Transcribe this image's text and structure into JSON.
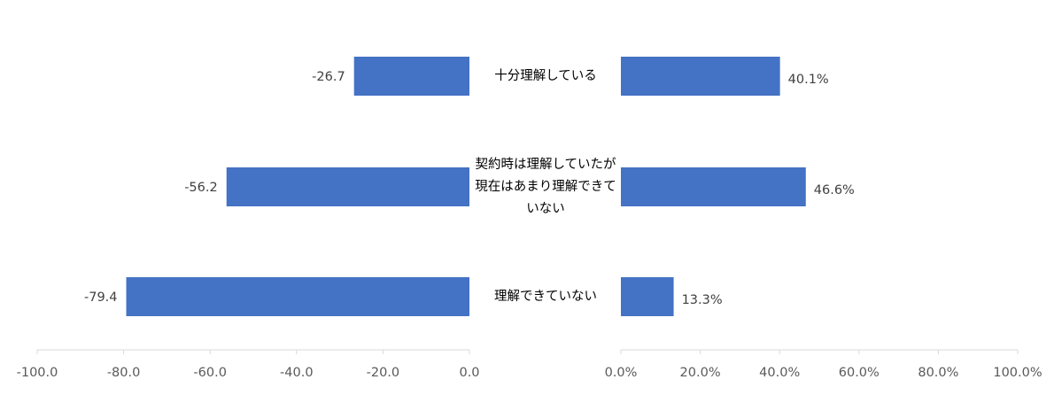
{
  "chart_data": [
    {
      "type": "bar",
      "orientation": "horizontal",
      "direction": "reversed",
      "categories": [
        "十分理解している",
        "契約時は理解していたが現在はあまり理解できていない",
        "理解できていない"
      ],
      "values": [
        -26.7,
        -56.2,
        -79.4
      ],
      "data_labels": [
        "-26.7",
        "-56.2",
        "-79.4"
      ],
      "xlim": [
        -100,
        0
      ],
      "ticks": [
        -100,
        -80,
        -60,
        -40,
        -20,
        0
      ],
      "tick_labels": [
        "-100.0",
        "-80.0",
        "-60.0",
        "-40.0",
        "-20.0",
        "0.0"
      ],
      "grid": false,
      "color": "#4472C4"
    },
    {
      "type": "bar",
      "orientation": "horizontal",
      "categories": [
        "十分理解している",
        "契約時は理解していたが現在はあまり理解できていない",
        "理解できていない"
      ],
      "values": [
        40.1,
        46.6,
        13.3
      ],
      "data_labels": [
        "40.1%",
        "46.6%",
        "13.3%"
      ],
      "xlim": [
        0,
        100
      ],
      "ticks": [
        0,
        20,
        40,
        60,
        80,
        100
      ],
      "tick_labels": [
        "0.0%",
        "20.0%",
        "40.0%",
        "60.0%",
        "80.0%",
        "100.0%"
      ],
      "grid": false,
      "color": "#4472C4"
    }
  ],
  "category_labels": [
    {
      "lines": [
        "十分理解している"
      ]
    },
    {
      "lines": [
        "契約時は理解していたが",
        "現在はあまり理解できて",
        "いない"
      ]
    },
    {
      "lines": [
        "理解できていない"
      ]
    }
  ],
  "colors": {
    "bar": "#4472C4",
    "axis": "#D9D9D9"
  }
}
